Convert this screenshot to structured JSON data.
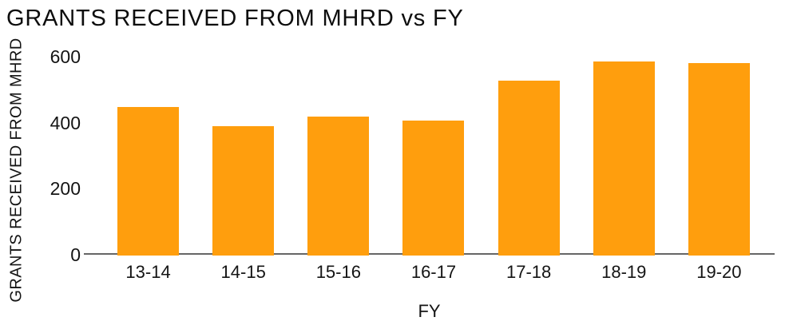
{
  "chart_data": {
    "type": "bar",
    "title": "GRANTS RECEIVED FROM MHRD vs FY",
    "xlabel": "FY",
    "ylabel": "GRANTS RECEIVED FROM MHRD",
    "categories": [
      "13-14",
      "14-15",
      "15-16",
      "16-17",
      "17-18",
      "18-19",
      "19-20"
    ],
    "values": [
      450,
      393,
      422,
      408,
      531,
      587,
      582
    ],
    "ylim": [
      0,
      600
    ],
    "yticks": [
      0,
      200,
      400,
      600
    ],
    "grid": false,
    "legend": false,
    "bar_color": "#FF9E0D",
    "axis_line_color": "#666666",
    "text_color": "#141414",
    "background_color": "#FFFFFF"
  }
}
